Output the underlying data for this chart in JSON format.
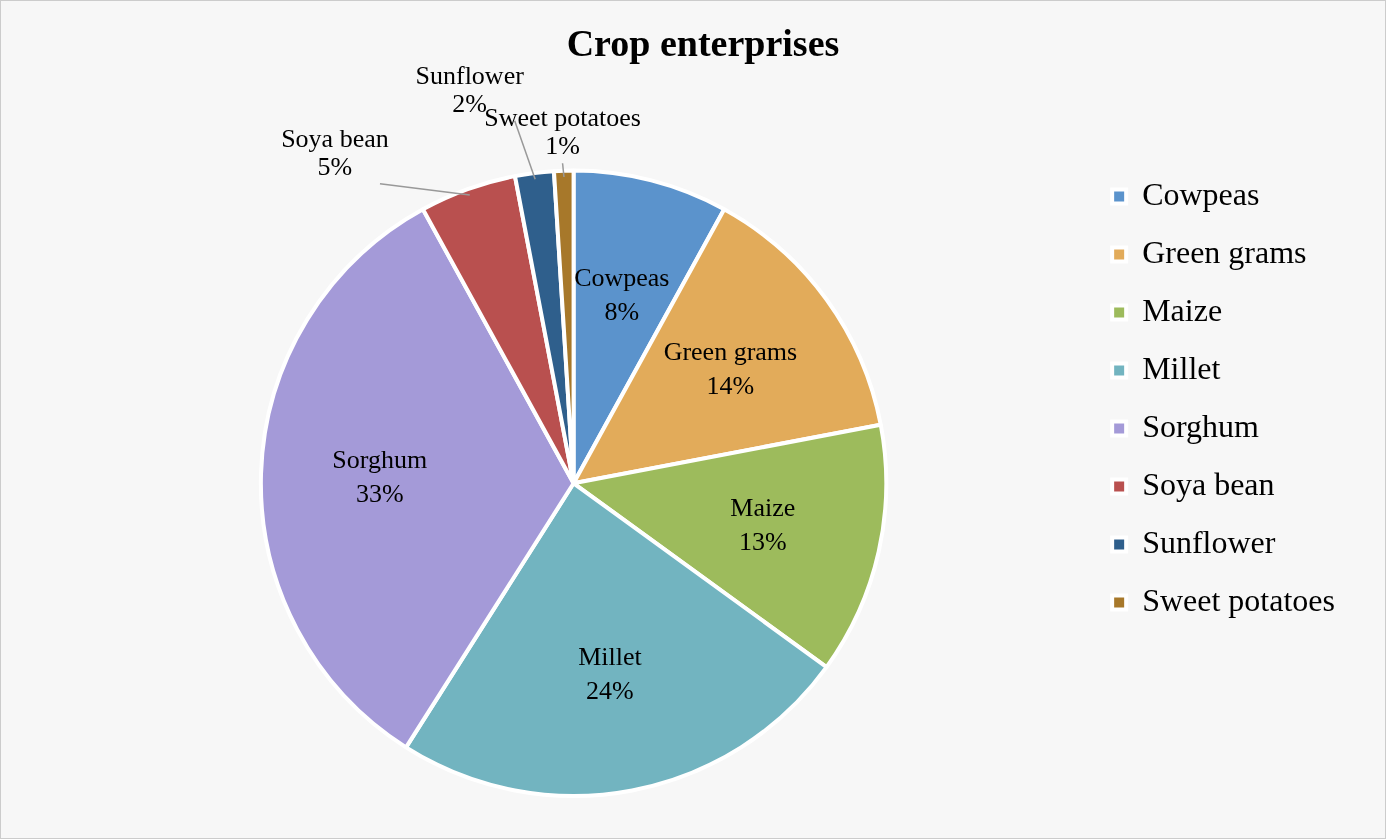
{
  "chart_data": {
    "type": "pie",
    "title": "Crop enterprises",
    "categories": [
      "Cowpeas",
      "Green grams",
      "Maize",
      "Millet",
      "Sorghum",
      "Soya bean",
      "Sunflower",
      "Sweet potatoes"
    ],
    "values": [
      8,
      14,
      13,
      24,
      33,
      5,
      2,
      1
    ],
    "colors": [
      "#5b93cc",
      "#e2ab5a",
      "#9dbb5c",
      "#72b4c0",
      "#a49ad8",
      "#b9504f",
      "#2f5f8c",
      "#a7782a"
    ],
    "value_labels": [
      "8%",
      "14%",
      "13%",
      "24%",
      "33%",
      "5%",
      "2%",
      "1%"
    ],
    "legend": "right"
  }
}
